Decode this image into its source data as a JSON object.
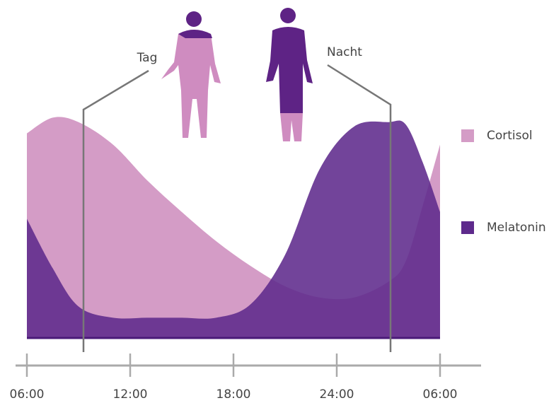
{
  "chart_data": {
    "type": "area",
    "x": [
      6,
      7.5,
      9,
      11,
      13,
      15,
      17,
      19,
      21,
      23,
      25,
      27,
      28,
      29,
      30
    ],
    "series": [
      {
        "name": "Cortisol",
        "color": "#d49cc6",
        "values": [
          91,
          98,
          96,
          86,
          70,
          56,
          43,
          32,
          23,
          18,
          18,
          25,
          34,
          59,
          86
        ]
      },
      {
        "name": "Melatonin",
        "color": "#5e2a8c",
        "values": [
          53,
          31,
          14,
          9,
          9,
          9,
          9,
          15,
          37,
          75,
          94,
          96,
          95,
          78,
          56
        ]
      }
    ],
    "xlim": [
      6,
      30
    ],
    "xticks": [
      {
        "value": 6,
        "label": "06:00"
      },
      {
        "value": 12,
        "label": "12:00"
      },
      {
        "value": 18,
        "label": "18:00"
      },
      {
        "value": 24,
        "label": "24:00"
      },
      {
        "value": 30,
        "label": "06:00"
      }
    ],
    "ylim": [
      0,
      100
    ],
    "annotations": [
      "Tag",
      "Nacht"
    ],
    "legend": "right"
  }
}
